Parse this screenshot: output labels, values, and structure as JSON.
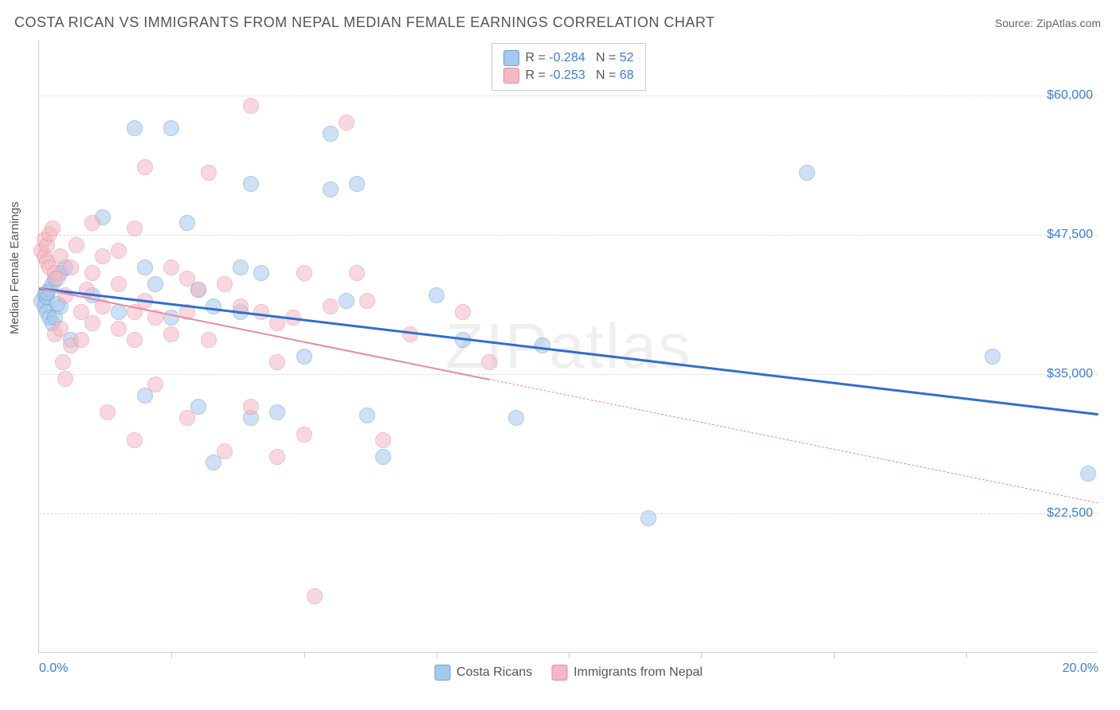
{
  "title": "COSTA RICAN VS IMMIGRANTS FROM NEPAL MEDIAN FEMALE EARNINGS CORRELATION CHART",
  "source_prefix": "Source: ",
  "source_name": "ZipAtlas.com",
  "watermark": "ZIPatlas",
  "chart": {
    "type": "scatter",
    "ylabel": "Median Female Earnings",
    "xlim": [
      0,
      20
    ],
    "ylim": [
      10000,
      65000
    ],
    "x_ticks_minor": [
      2.5,
      5.0,
      7.5,
      10.0,
      12.5,
      15.0,
      17.5
    ],
    "x_tick_labels": [
      {
        "x": 0,
        "label": "0.0%",
        "align": "left"
      },
      {
        "x": 20,
        "label": "20.0%",
        "align": "right"
      }
    ],
    "y_gridlines": [
      22500,
      35000,
      47500,
      60000
    ],
    "y_tick_labels": [
      {
        "y": 22500,
        "label": "$22,500"
      },
      {
        "y": 35000,
        "label": "$35,000"
      },
      {
        "y": 47500,
        "label": "$47,500"
      },
      {
        "y": 60000,
        "label": "$60,000"
      }
    ],
    "grid_color": "#dddddd",
    "axis_color": "#cccccc",
    "background_color": "#ffffff",
    "marker_radius": 10,
    "marker_opacity": 0.55,
    "series": [
      {
        "name": "Costa Ricans",
        "color_fill": "#a6c8ec",
        "color_stroke": "#6a9fd4",
        "R": "-0.284",
        "N": "52",
        "trend": {
          "x1": 0,
          "y1": 42800,
          "x2": 20,
          "y2": 31500,
          "color": "#2e6fd1",
          "width": 2.5,
          "solid_until_x": 20
        },
        "points": [
          [
            0.05,
            41500
          ],
          [
            0.1,
            42000
          ],
          [
            0.1,
            41000
          ],
          [
            0.15,
            41800
          ],
          [
            0.15,
            40500
          ],
          [
            0.2,
            42500
          ],
          [
            0.2,
            40000
          ],
          [
            0.25,
            43000
          ],
          [
            0.25,
            39500
          ],
          [
            0.3,
            43500
          ],
          [
            0.3,
            40000
          ],
          [
            0.4,
            44000
          ],
          [
            0.4,
            41000
          ],
          [
            0.5,
            44500
          ],
          [
            0.6,
            38000
          ],
          [
            1.0,
            42000
          ],
          [
            1.2,
            49000
          ],
          [
            1.5,
            40500
          ],
          [
            1.8,
            57000
          ],
          [
            2.0,
            44500
          ],
          [
            2.0,
            33000
          ],
          [
            2.2,
            43000
          ],
          [
            2.5,
            57000
          ],
          [
            2.5,
            40000
          ],
          [
            2.8,
            48500
          ],
          [
            3.0,
            42500
          ],
          [
            3.0,
            32000
          ],
          [
            3.3,
            41000
          ],
          [
            3.3,
            27000
          ],
          [
            3.8,
            44500
          ],
          [
            3.8,
            40500
          ],
          [
            4.0,
            52000
          ],
          [
            4.0,
            31000
          ],
          [
            4.2,
            44000
          ],
          [
            4.5,
            31500
          ],
          [
            5.0,
            36500
          ],
          [
            5.5,
            56500
          ],
          [
            5.5,
            51500
          ],
          [
            5.8,
            41500
          ],
          [
            6.0,
            52000
          ],
          [
            6.2,
            31200
          ],
          [
            6.5,
            27500
          ],
          [
            7.5,
            42000
          ],
          [
            8.0,
            38000
          ],
          [
            9.0,
            31000
          ],
          [
            9.5,
            37500
          ],
          [
            11.5,
            22000
          ],
          [
            14.5,
            53000
          ],
          [
            18.0,
            36500
          ],
          [
            19.8,
            26000
          ],
          [
            0.15,
            42200
          ],
          [
            0.35,
            41200
          ]
        ]
      },
      {
        "name": "Immigrants from Nepal",
        "color_fill": "#f4b8c4",
        "color_stroke": "#e88ba0",
        "R": "-0.253",
        "N": "68",
        "trend": {
          "x1": 0,
          "y1": 42800,
          "x2": 20,
          "y2": 23500,
          "color": "#e88ba0",
          "width": 2,
          "solid_until_x": 8.5
        },
        "points": [
          [
            0.05,
            46000
          ],
          [
            0.1,
            47000
          ],
          [
            0.1,
            45500
          ],
          [
            0.15,
            46500
          ],
          [
            0.15,
            45000
          ],
          [
            0.2,
            47500
          ],
          [
            0.2,
            44500
          ],
          [
            0.25,
            48000
          ],
          [
            0.3,
            44000
          ],
          [
            0.3,
            38500
          ],
          [
            0.35,
            43500
          ],
          [
            0.4,
            45500
          ],
          [
            0.4,
            39000
          ],
          [
            0.45,
            36000
          ],
          [
            0.5,
            42000
          ],
          [
            0.5,
            34500
          ],
          [
            0.6,
            44500
          ],
          [
            0.6,
            37500
          ],
          [
            0.7,
            46500
          ],
          [
            0.8,
            40500
          ],
          [
            0.8,
            38000
          ],
          [
            0.9,
            42500
          ],
          [
            1.0,
            48500
          ],
          [
            1.0,
            44000
          ],
          [
            1.0,
            39500
          ],
          [
            1.2,
            45500
          ],
          [
            1.2,
            41000
          ],
          [
            1.3,
            31500
          ],
          [
            1.5,
            46000
          ],
          [
            1.5,
            43000
          ],
          [
            1.5,
            39000
          ],
          [
            1.8,
            48000
          ],
          [
            1.8,
            40500
          ],
          [
            1.8,
            38000
          ],
          [
            1.8,
            29000
          ],
          [
            2.0,
            53500
          ],
          [
            2.0,
            41500
          ],
          [
            2.2,
            40000
          ],
          [
            2.2,
            34000
          ],
          [
            2.5,
            44500
          ],
          [
            2.5,
            38500
          ],
          [
            2.8,
            43500
          ],
          [
            2.8,
            40500
          ],
          [
            2.8,
            31000
          ],
          [
            3.0,
            42500
          ],
          [
            3.2,
            53000
          ],
          [
            3.2,
            38000
          ],
          [
            3.5,
            43000
          ],
          [
            3.5,
            28000
          ],
          [
            3.8,
            41000
          ],
          [
            4.0,
            59000
          ],
          [
            4.0,
            32000
          ],
          [
            4.2,
            40500
          ],
          [
            4.5,
            39500
          ],
          [
            4.5,
            36000
          ],
          [
            4.5,
            27500
          ],
          [
            4.8,
            40000
          ],
          [
            5.0,
            44000
          ],
          [
            5.0,
            29500
          ],
          [
            5.2,
            15000
          ],
          [
            5.5,
            41000
          ],
          [
            5.8,
            57500
          ],
          [
            6.0,
            44000
          ],
          [
            6.2,
            41500
          ],
          [
            6.5,
            29000
          ],
          [
            7.0,
            38500
          ],
          [
            8.0,
            40500
          ],
          [
            8.5,
            36000
          ]
        ]
      }
    ],
    "legend_top": {
      "stat1_label": "R =",
      "stat2_label": "N ="
    },
    "legend_bottom": true
  }
}
